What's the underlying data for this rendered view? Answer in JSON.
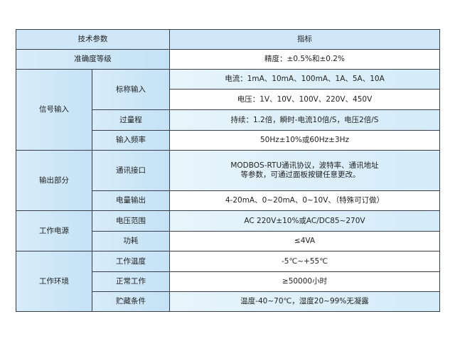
{
  "header": {
    "param": "技术参数",
    "spec": "指标"
  },
  "rows": {
    "accuracy": {
      "label": "准确度等级",
      "value": "精度：±0.5%和±0.2%"
    },
    "signal_input": {
      "group": "信号输入",
      "nominal": {
        "label": "标称输入",
        "current": "电流：1mA、10mA、100mA、1A、5A、10A",
        "voltage": "电压：1V、10V、100V、220V、450V"
      },
      "overload": {
        "label": "过量程",
        "value": "持续：1.2倍，瞬时-电流10倍/S，电压2倍/S"
      },
      "frequency": {
        "label": "输入频率",
        "value": "50Hz±10%或60Hz±3Hz"
      }
    },
    "output": {
      "group": "输出部分",
      "comm": {
        "label": "通讯接口",
        "line1": "MODBOS-RTU通讯协议，波特率、通讯地址",
        "line2": "等参数，可通过面板按键任意更改。"
      },
      "analog": {
        "label": "电量输出",
        "value": "4-20mA、0~20mA、0~10V、（特殊可订做）"
      }
    },
    "power": {
      "group": "工作电源",
      "range": {
        "label": "电压范围",
        "value": "AC 220V±10%或AC/DC85~270V"
      },
      "consumption": {
        "label": "功耗",
        "value": "≤4VA"
      }
    },
    "environment": {
      "group": "工作环境",
      "temp": {
        "label": "工作温度",
        "value": "-5℃~+55℃"
      },
      "life": {
        "label": "正常工作",
        "value": "≥50000小时"
      },
      "storage": {
        "label": "贮藏条件",
        "value": "温度-40~70℃，湿度20~99%无凝露"
      }
    }
  },
  "colors": {
    "label_bg": "#cfe7f8",
    "border": "#3a3f47"
  }
}
